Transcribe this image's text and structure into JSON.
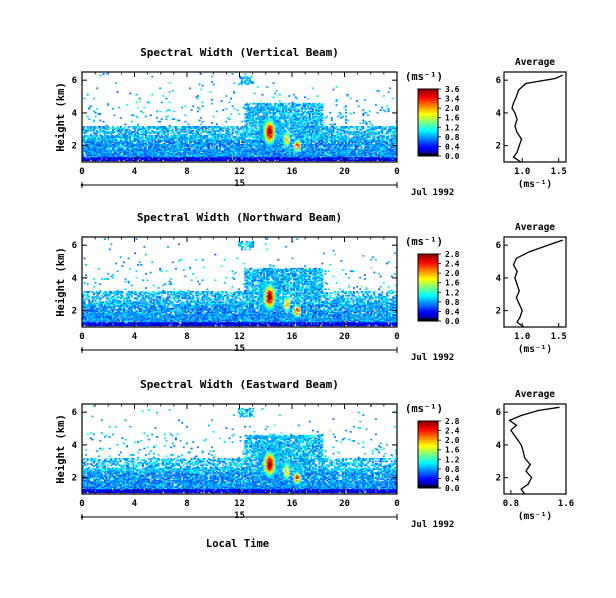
{
  "chart_data": [
    {
      "type": "heatmap",
      "title": "Spectral Width (Vertical Beam)",
      "ylabel": "Height (km)",
      "unit_label": "(ms⁻¹)",
      "x_ticks": [
        "0",
        "4",
        "8",
        "12",
        "16",
        "20",
        "0"
      ],
      "y_ticks": [
        "2",
        "4",
        "6"
      ],
      "xlim": [
        0,
        24
      ],
      "ylim": [
        1,
        6.5
      ],
      "day_label": "15",
      "date_label": "Jul 1992",
      "colorbar_ticks": [
        "3.6",
        "3.4",
        "2.0",
        "1.6",
        "1.2",
        "0.8",
        "0.4",
        "0.0"
      ],
      "colorbar_range": [
        0,
        3.6
      ],
      "average": {
        "title": "Average",
        "xlabel": "(ms⁻¹)",
        "x_ticks": [
          "1.0",
          "1.5"
        ],
        "y_ticks": [
          "2",
          "4",
          "6"
        ],
        "xlim": [
          0.75,
          1.6
        ],
        "ylim": [
          1,
          6.5
        ],
        "height": [
          1.0,
          1.3,
          1.6,
          2.0,
          2.4,
          2.8,
          3.2,
          3.6,
          4.0,
          4.3,
          4.6,
          5.0,
          5.4,
          5.8,
          6.1,
          6.3
        ],
        "value": [
          0.98,
          0.88,
          0.93,
          0.96,
          0.99,
          0.93,
          0.9,
          0.93,
          0.9,
          0.86,
          0.88,
          0.92,
          0.95,
          1.05,
          1.45,
          1.55
        ]
      }
    },
    {
      "type": "heatmap",
      "title": "Spectral Width (Northward Beam)",
      "ylabel": "Height (km)",
      "unit_label": "(ms⁻¹)",
      "x_ticks": [
        "0",
        "4",
        "8",
        "12",
        "16",
        "20",
        "0"
      ],
      "y_ticks": [
        "2",
        "4",
        "6"
      ],
      "xlim": [
        0,
        24
      ],
      "ylim": [
        1,
        6.5
      ],
      "day_label": "15",
      "date_label": "Jul 1992",
      "colorbar_ticks": [
        "2.8",
        "2.4",
        "2.0",
        "1.6",
        "1.2",
        "0.8",
        "0.4",
        "0.0"
      ],
      "colorbar_range": [
        0,
        2.8
      ],
      "average": {
        "title": "Average",
        "xlabel": "(ms⁻¹)",
        "x_ticks": [
          "1.0",
          "1.5"
        ],
        "y_ticks": [
          "2",
          "4",
          "6"
        ],
        "xlim": [
          0.75,
          1.6
        ],
        "ylim": [
          1,
          6.5
        ],
        "height": [
          1.0,
          1.3,
          1.6,
          2.0,
          2.4,
          2.8,
          3.2,
          3.6,
          4.0,
          4.4,
          4.8,
          5.2,
          5.6,
          6.0,
          6.3
        ],
        "value": [
          1.02,
          0.93,
          0.97,
          1.0,
          0.96,
          0.92,
          0.96,
          0.93,
          0.9,
          0.93,
          0.88,
          0.92,
          1.1,
          1.35,
          1.55
        ]
      }
    },
    {
      "type": "heatmap",
      "title": "Spectral Width (Eastward Beam)",
      "ylabel": "Height (km)",
      "unit_label": "(ms⁻¹)",
      "x_ticks": [
        "0",
        "4",
        "8",
        "12",
        "16",
        "20",
        "0"
      ],
      "y_ticks": [
        "2",
        "4",
        "6"
      ],
      "xlim": [
        0,
        24
      ],
      "ylim": [
        1,
        6.5
      ],
      "day_label": "15",
      "date_label": "Jul 1992",
      "xlabel": "Local Time",
      "colorbar_ticks": [
        "2.8",
        "2.4",
        "2.0",
        "1.6",
        "1.2",
        "0.8",
        "0.4",
        "0.0"
      ],
      "colorbar_range": [
        0,
        2.8
      ],
      "average": {
        "title": "Average",
        "xlabel": "(ms⁻¹)",
        "x_ticks": [
          "0.8",
          "1.6"
        ],
        "y_ticks": [
          "2",
          "4",
          "6"
        ],
        "xlim": [
          0.7,
          1.6
        ],
        "ylim": [
          1,
          6.5
        ],
        "height": [
          1.0,
          1.3,
          1.6,
          2.0,
          2.4,
          2.8,
          3.2,
          3.6,
          4.0,
          4.3,
          4.6,
          4.9,
          5.2,
          5.5,
          5.8,
          6.1,
          6.3
        ],
        "value": [
          1.0,
          0.95,
          1.05,
          1.1,
          1.02,
          1.08,
          1.0,
          0.98,
          0.95,
          0.9,
          0.85,
          0.8,
          0.88,
          0.78,
          0.95,
          1.2,
          1.5
        ]
      }
    }
  ]
}
